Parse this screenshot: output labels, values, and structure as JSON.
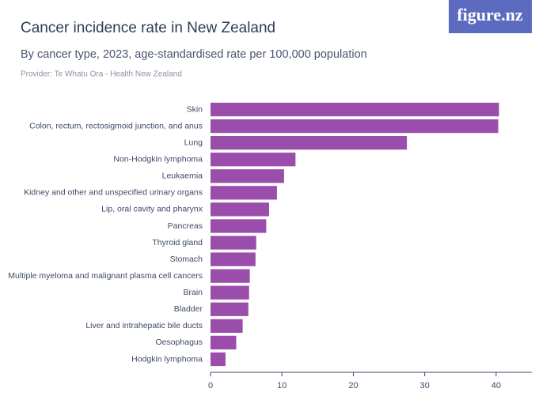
{
  "logo": "figure.nz",
  "chart_data": {
    "type": "barh",
    "title": "Cancer incidence rate in New Zealand",
    "subtitle": "By cancer type, 2023, age-standardised rate per 100,000 population",
    "source": "Provider: Te Whatu Ora - Health New Zealand",
    "categories": [
      "Skin",
      "Colon, rectum, rectosigmoid junction, and anus",
      "Lung",
      "Non-Hodgkin lymphoma",
      "Leukaemia",
      "Kidney and other and unspecified urinary organs",
      "Lip, oral cavity and pharynx",
      "Pancreas",
      "Thyroid gland",
      "Stomach",
      "Multiple myeloma and malignant plasma cell cancers",
      "Brain",
      "Bladder",
      "Liver and intrahepatic bile ducts",
      "Oesophagus",
      "Hodgkin lymphoma"
    ],
    "values": [
      40.4,
      40.3,
      27.5,
      11.9,
      10.3,
      9.3,
      8.2,
      7.8,
      6.4,
      6.3,
      5.5,
      5.4,
      5.3,
      4.5,
      3.6,
      2.1
    ],
    "color": "#9b4dab",
    "xlim": [
      0,
      45
    ],
    "xticks": [
      0,
      10,
      20,
      30,
      40
    ],
    "grid": false
  }
}
